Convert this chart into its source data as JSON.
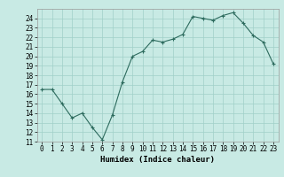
{
  "x": [
    0,
    1,
    2,
    3,
    4,
    5,
    6,
    7,
    8,
    9,
    10,
    11,
    12,
    13,
    14,
    15,
    16,
    17,
    18,
    19,
    20,
    21,
    22,
    23
  ],
  "y": [
    16.5,
    16.5,
    15.0,
    13.5,
    14.0,
    12.5,
    11.2,
    13.8,
    17.3,
    20.0,
    20.5,
    21.7,
    21.5,
    21.8,
    22.3,
    24.2,
    24.0,
    23.8,
    24.3,
    24.6,
    23.5,
    22.2,
    21.5,
    19.2
  ],
  "line_color": "#2d6b5e",
  "marker_color": "#2d6b5e",
  "bg_color": "#c8eae4",
  "grid_color": "#a0d0c8",
  "xlabel": "Humidex (Indice chaleur)",
  "ylim": [
    11,
    25
  ],
  "xlim": [
    -0.5,
    23.5
  ],
  "yticks": [
    11,
    12,
    13,
    14,
    15,
    16,
    17,
    18,
    19,
    20,
    21,
    22,
    23,
    24
  ],
  "xticks": [
    0,
    1,
    2,
    3,
    4,
    5,
    6,
    7,
    8,
    9,
    10,
    11,
    12,
    13,
    14,
    15,
    16,
    17,
    18,
    19,
    20,
    21,
    22,
    23
  ],
  "axis_fontsize": 5.5,
  "label_fontsize": 6.5
}
